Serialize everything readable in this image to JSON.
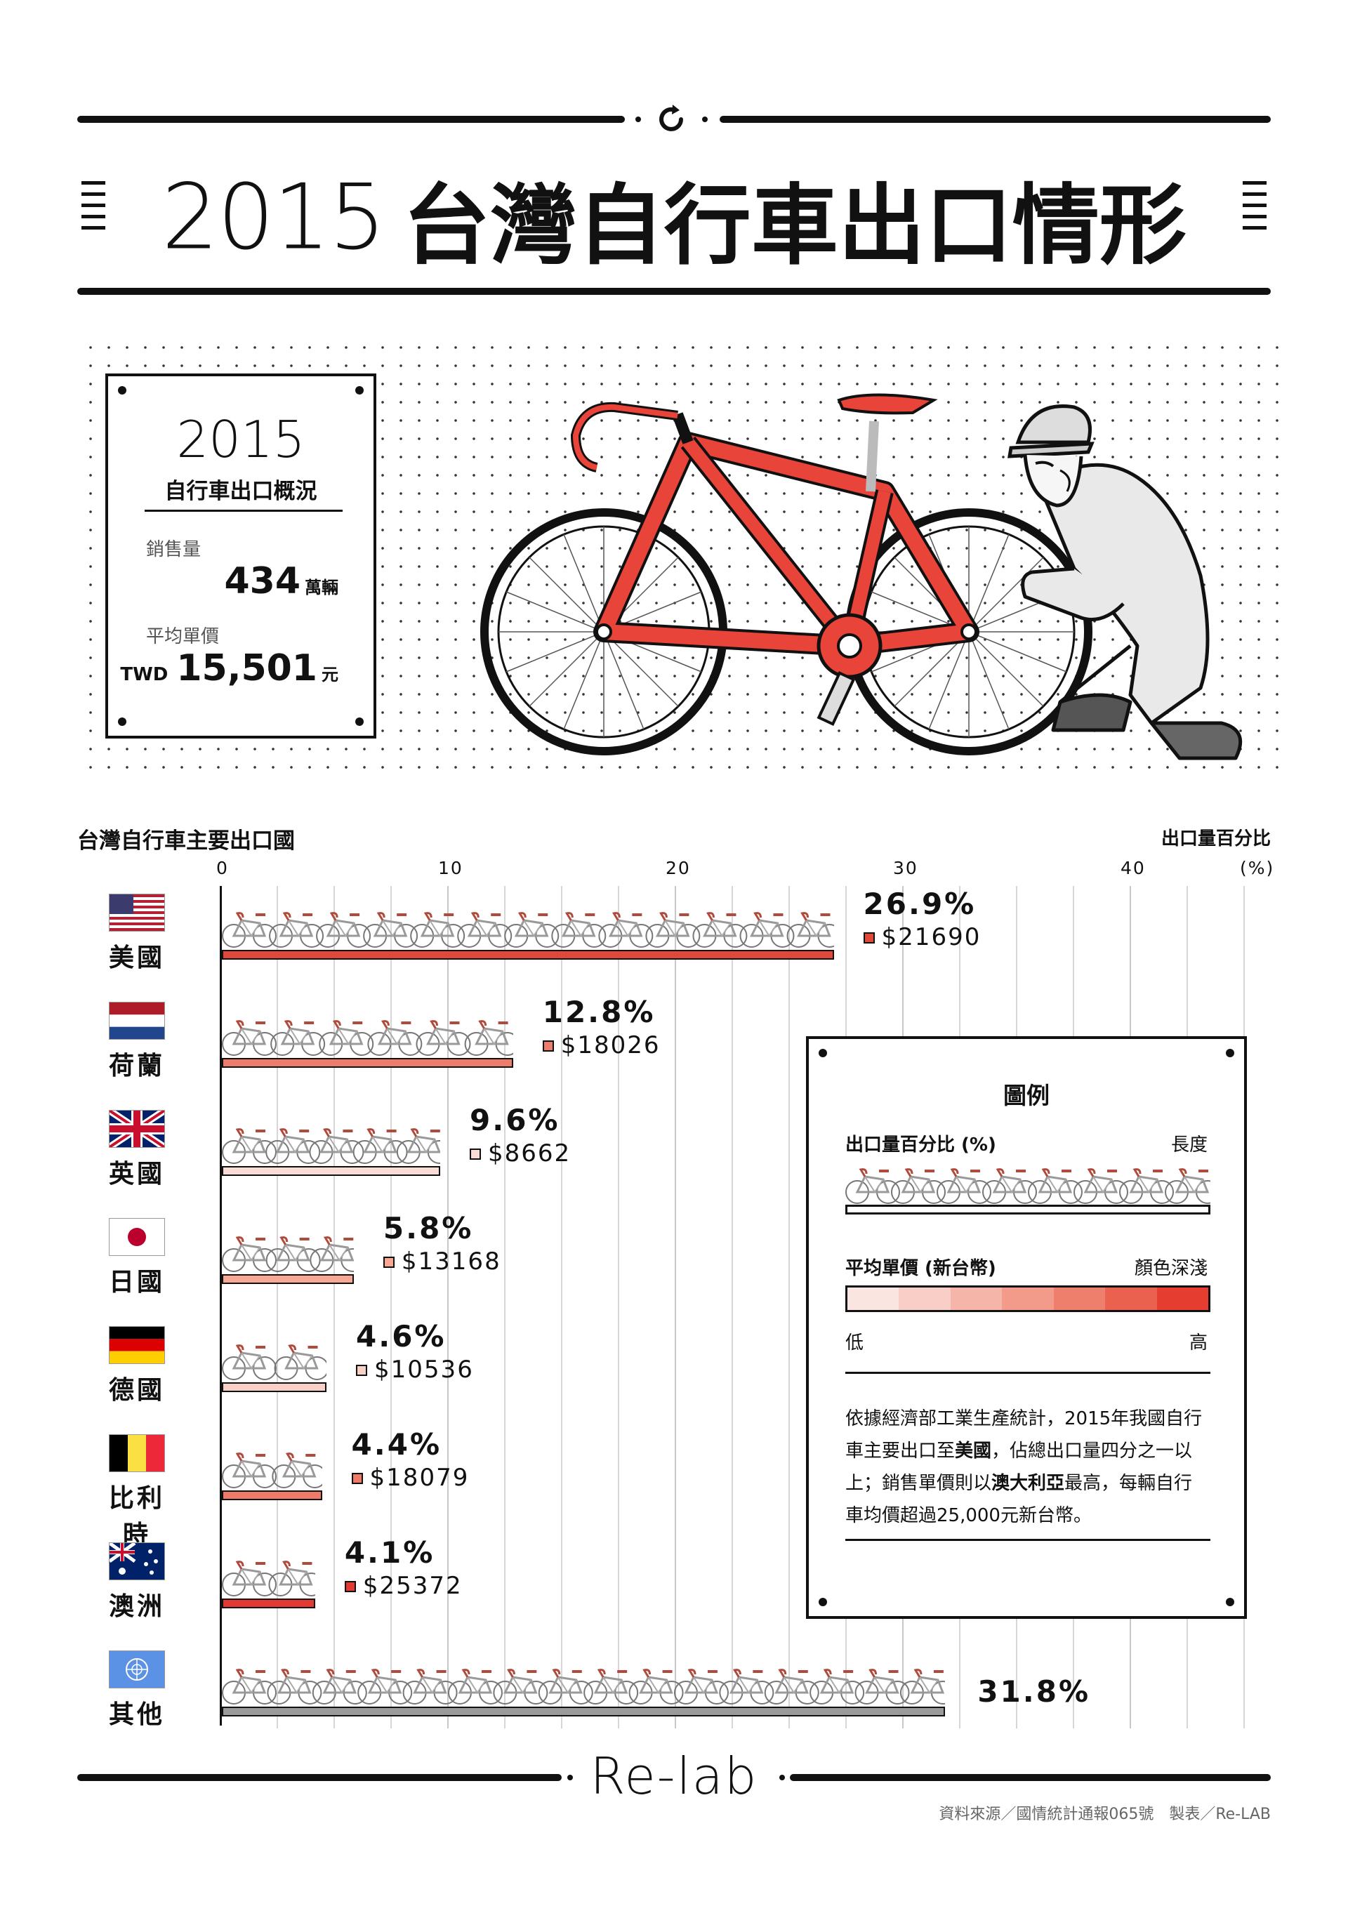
{
  "title": {
    "year": "2015",
    "text": "台灣自行車出口情形"
  },
  "summary": {
    "year": "2015",
    "subtitle": "自行車出口概況",
    "sales_label": "銷售量",
    "sales_value": "434",
    "sales_unit": "萬輛",
    "price_label": "平均單價",
    "price_prefix": "TWD",
    "price_value": "15,501",
    "price_unit": "元"
  },
  "section": {
    "title": "台灣自行車主要出口國",
    "right_label": "出口量百分比",
    "unit": "(%)"
  },
  "chart_data": {
    "type": "bar",
    "orientation": "horizontal",
    "title": "台灣自行車主要出口國",
    "xlabel": "出口量百分比",
    "x_unit": "(%)",
    "xlim": [
      0,
      45
    ],
    "x_ticks": [
      "0",
      "10",
      "20",
      "30",
      "40"
    ],
    "grid": true,
    "categories": [
      "美國",
      "荷蘭",
      "英國",
      "日國",
      "德國",
      "比利時",
      "澳洲",
      "其他"
    ],
    "values": [
      26.9,
      12.8,
      9.6,
      5.8,
      4.6,
      4.4,
      4.1,
      31.8
    ],
    "labels": [
      "26.9%",
      "12.8%",
      "9.6%",
      "5.8%",
      "4.6%",
      "4.4%",
      "4.1%",
      "31.8%"
    ],
    "avg_price_labels": [
      "$21690",
      "$18026",
      "$8662",
      "$13168",
      "$10536",
      "$18079",
      "$25372",
      ""
    ],
    "avg_price_values": [
      21690,
      18026,
      8662,
      13168,
      10536,
      18079,
      25372,
      null
    ],
    "bar_colors": [
      "#e0483a",
      "#ec7c6c",
      "#f8dcd5",
      "#f5a995",
      "#f8d0c8",
      "#ef7a68",
      "#e23a32",
      "#9a9a9a"
    ]
  },
  "flags": [
    "us",
    "nl",
    "uk",
    "jp",
    "de",
    "be",
    "au",
    "un"
  ],
  "legend": {
    "title": "圖例",
    "len_label": "出口量百分比 (%)",
    "len_right": "長度",
    "color_label": "平均單價 (新台幣)",
    "color_right": "顏色深淺",
    "low": "低",
    "high": "高",
    "gradient": [
      "#fbe5e1",
      "#f8cec6",
      "#f5b5a9",
      "#f29b8b",
      "#ef7f6d",
      "#eb6150",
      "#e53e31"
    ],
    "note_parts": [
      "依據經濟部工業生產統計，2015年我國自行車主要出口至",
      "美國",
      "，佔總出口量四分之一以上；銷售單價則以",
      "澳大利亞",
      "最高，每輛自行車均價超過25,000元新台幣。"
    ]
  },
  "footer": {
    "brand": "Re-lab",
    "source": "資料來源／國情統計通報065號　製表／Re-LAB"
  },
  "colors": {
    "frame_red": "#e8443a",
    "ink": "#111111",
    "grid": "#d6d6d6"
  }
}
